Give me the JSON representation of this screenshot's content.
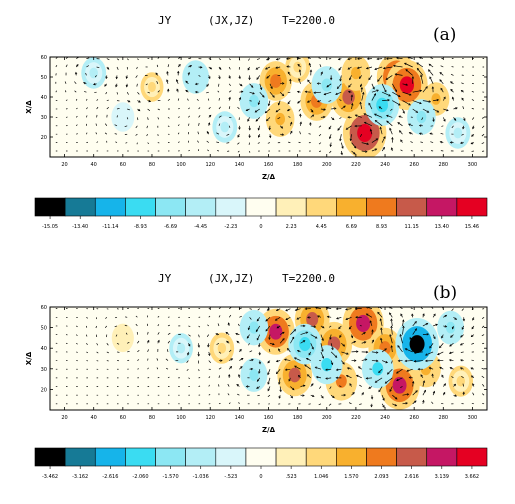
{
  "chart_data": [
    {
      "type": "heatmap",
      "panel_label": "(a)",
      "title": {
        "var": "JY",
        "dims": "(JX,JZ)",
        "time": "T=2200.0"
      },
      "xlabel": "Z/Δ",
      "ylabel": "X/Δ",
      "x_ticks": [
        "20",
        "40",
        "60",
        "80",
        "100",
        "120",
        "140",
        "160",
        "180",
        "200",
        "220",
        "240",
        "260",
        "280",
        "300"
      ],
      "y_ticks": [
        "20",
        "30",
        "40",
        "50",
        "60"
      ],
      "colorbar": {
        "labels": [
          "-15.05",
          "-13.40",
          "-11.14",
          "-8.93",
          "-6.69",
          "-4.45",
          "-2.23",
          "0",
          "2.23",
          "4.45",
          "6.69",
          "8.93",
          "11.15",
          "13.40",
          "15.46"
        ],
        "colors": [
          "#000000",
          "#167a96",
          "#16b4ea",
          "#3adcf2",
          "#8ce7f3",
          "#b3eef6",
          "#d9f6fa",
          "#fffef0",
          "#fff0b8",
          "#ffd87a",
          "#f8b02e",
          "#ef7a1e",
          "#c75a4a",
          "#c51764",
          "#e50022"
        ]
      },
      "features": [
        {
          "x": 165,
          "y": 48,
          "v": 8
        },
        {
          "x": 168,
          "y": 29,
          "v": 6
        },
        {
          "x": 193,
          "y": 38,
          "v": 8
        },
        {
          "x": 215,
          "y": 40,
          "v": 10
        },
        {
          "x": 220,
          "y": 52,
          "v": 6
        },
        {
          "x": 226,
          "y": 22,
          "v": 14
        },
        {
          "x": 248,
          "y": 50,
          "v": 12
        },
        {
          "x": 255,
          "y": 46,
          "v": 13
        },
        {
          "x": 275,
          "y": 39,
          "v": 5
        },
        {
          "x": 150,
          "y": 38,
          "v": -6
        },
        {
          "x": 200,
          "y": 46,
          "v": -7
        },
        {
          "x": 238,
          "y": 36,
          "v": -9
        },
        {
          "x": 110,
          "y": 50,
          "v": -5
        },
        {
          "x": 80,
          "y": 45,
          "v": 3
        },
        {
          "x": 130,
          "y": 25,
          "v": -4
        },
        {
          "x": 60,
          "y": 30,
          "v": -3
        },
        {
          "x": 265,
          "y": 30,
          "v": -6
        },
        {
          "x": 290,
          "y": 22,
          "v": -4
        },
        {
          "x": 40,
          "y": 52,
          "v": -4
        },
        {
          "x": 180,
          "y": 55,
          "v": 4
        }
      ]
    },
    {
      "type": "heatmap",
      "panel_label": "(b)",
      "title": {
        "var": "JY",
        "dims": "(JX,JZ)",
        "time": "T=2200.0"
      },
      "xlabel": "Z/Δ",
      "ylabel": "X/Δ",
      "x_ticks": [
        "20",
        "40",
        "60",
        "80",
        "100",
        "120",
        "140",
        "160",
        "180",
        "200",
        "220",
        "240",
        "260",
        "280",
        "300"
      ],
      "y_ticks": [
        "20",
        "30",
        "40",
        "50",
        "60"
      ],
      "colorbar": {
        "labels": [
          "-3.462",
          "-3.162",
          "-2.616",
          "-2.060",
          "-1.570",
          "-1.036",
          "-.523",
          "0",
          ".523",
          "1.046",
          "1.570",
          "2.093",
          "2.616",
          "3.139",
          "3.662"
        ],
        "colors": [
          "#000000",
          "#167a96",
          "#16b4ea",
          "#3adcf2",
          "#8ce7f3",
          "#b3eef6",
          "#d9f6fa",
          "#fffef0",
          "#fff0b8",
          "#ffd87a",
          "#f8b02e",
          "#ef7a1e",
          "#c75a4a",
          "#c51764",
          "#e50022"
        ]
      },
      "features": [
        {
          "x": 165,
          "y": 48,
          "v": 2.6
        },
        {
          "x": 190,
          "y": 54,
          "v": 2.2
        },
        {
          "x": 205,
          "y": 42,
          "v": 2.4
        },
        {
          "x": 225,
          "y": 52,
          "v": 3.0
        },
        {
          "x": 240,
          "y": 40,
          "v": 2.0
        },
        {
          "x": 178,
          "y": 27,
          "v": 2.2
        },
        {
          "x": 210,
          "y": 24,
          "v": 1.8
        },
        {
          "x": 250,
          "y": 22,
          "v": 2.9
        },
        {
          "x": 268,
          "y": 30,
          "v": 1.6
        },
        {
          "x": 185,
          "y": 42,
          "v": -2.0
        },
        {
          "x": 200,
          "y": 32,
          "v": -1.8
        },
        {
          "x": 262,
          "y": 42,
          "v": -3.3
        },
        {
          "x": 235,
          "y": 30,
          "v": -1.8
        },
        {
          "x": 150,
          "y": 50,
          "v": -1.4
        },
        {
          "x": 150,
          "y": 27,
          "v": -1.2
        },
        {
          "x": 128,
          "y": 40,
          "v": 0.9
        },
        {
          "x": 100,
          "y": 40,
          "v": -0.8
        },
        {
          "x": 60,
          "y": 45,
          "v": 0.6
        },
        {
          "x": 285,
          "y": 50,
          "v": -1.2
        },
        {
          "x": 292,
          "y": 24,
          "v": 0.9
        }
      ]
    }
  ]
}
